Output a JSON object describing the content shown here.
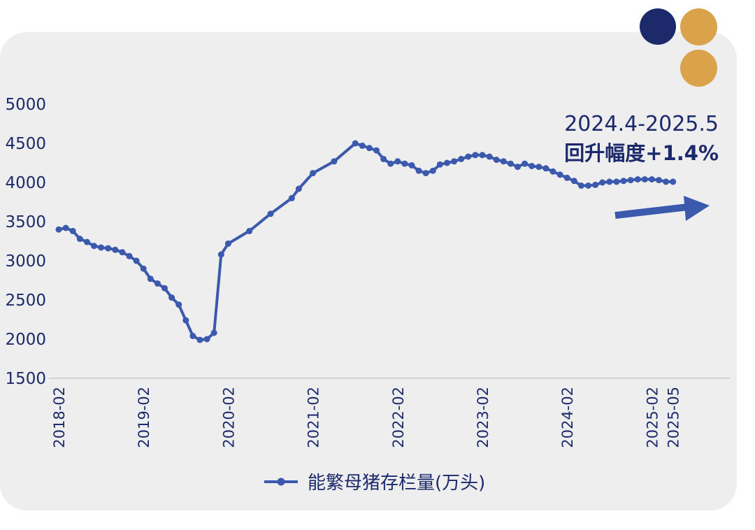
{
  "colors": {
    "series": "#3b59ad",
    "text": "#1c2a6b",
    "card": "#eeeeee",
    "dot_navy": "#1c2a6b",
    "dot_gold": "#dba24c"
  },
  "decor": {
    "dots": [
      "navy-dot",
      "gold-dot",
      "gold-dot"
    ]
  },
  "annotation": {
    "range": "2024.4-2025.5",
    "change": "回升幅度+1.4%",
    "arrow_icon": "arrow-up-right-icon"
  },
  "chart_data": {
    "type": "line",
    "title": "",
    "xlabel": "",
    "ylabel": "",
    "ylim": [
      1500,
      5000
    ],
    "yticks": [
      "5000",
      "4500",
      "4000",
      "3500",
      "3000",
      "2500",
      "2000",
      "1500"
    ],
    "xticks": [
      "2018-02",
      "2019-02",
      "2020-02",
      "2021-02",
      "2022-02",
      "2023-02",
      "2024-02",
      "2025-02",
      "2025-05"
    ],
    "grid": false,
    "legend_position": "bottom",
    "series": [
      {
        "name": "能繁母猪存栏量(万头)",
        "x": [
          "2018-02",
          "2018-03",
          "2018-04",
          "2018-05",
          "2018-06",
          "2018-07",
          "2018-08",
          "2018-09",
          "2018-10",
          "2018-11",
          "2018-12",
          "2019-01",
          "2019-02",
          "2019-03",
          "2019-04",
          "2019-05",
          "2019-06",
          "2019-07",
          "2019-08",
          "2019-09",
          "2019-10",
          "2019-11",
          "2019-12",
          "2020-01",
          "2020-02",
          "2020-05",
          "2020-08",
          "2020-11",
          "2020-12",
          "2021-02",
          "2021-05",
          "2021-08",
          "2021-09",
          "2021-10",
          "2021-11",
          "2021-12",
          "2022-01",
          "2022-02",
          "2022-03",
          "2022-04",
          "2022-05",
          "2022-06",
          "2022-07",
          "2022-08",
          "2022-09",
          "2022-10",
          "2022-11",
          "2022-12",
          "2023-01",
          "2023-02",
          "2023-03",
          "2023-04",
          "2023-05",
          "2023-06",
          "2023-07",
          "2023-08",
          "2023-09",
          "2023-10",
          "2023-11",
          "2023-12",
          "2024-01",
          "2024-02",
          "2024-03",
          "2024-04",
          "2024-05",
          "2024-06",
          "2024-07",
          "2024-08",
          "2024-09",
          "2024-10",
          "2024-11",
          "2024-12",
          "2025-01",
          "2025-02",
          "2025-03",
          "2025-04",
          "2025-05"
        ],
        "values": [
          3400,
          3420,
          3380,
          3280,
          3240,
          3190,
          3170,
          3160,
          3140,
          3110,
          3060,
          3000,
          2900,
          2770,
          2710,
          2650,
          2530,
          2440,
          2240,
          2040,
          1990,
          2000,
          2080,
          3080,
          3220,
          3380,
          3600,
          3800,
          3920,
          4120,
          4270,
          4500,
          4470,
          4440,
          4410,
          4300,
          4240,
          4270,
          4240,
          4220,
          4150,
          4120,
          4150,
          4230,
          4250,
          4270,
          4300,
          4330,
          4350,
          4350,
          4330,
          4290,
          4270,
          4240,
          4200,
          4240,
          4210,
          4200,
          4180,
          4140,
          4100,
          4060,
          4020,
          3960,
          3960,
          3970,
          4000,
          4010,
          4010,
          4020,
          4030,
          4040,
          4040,
          4040,
          4030,
          4010,
          4010
        ]
      }
    ]
  }
}
